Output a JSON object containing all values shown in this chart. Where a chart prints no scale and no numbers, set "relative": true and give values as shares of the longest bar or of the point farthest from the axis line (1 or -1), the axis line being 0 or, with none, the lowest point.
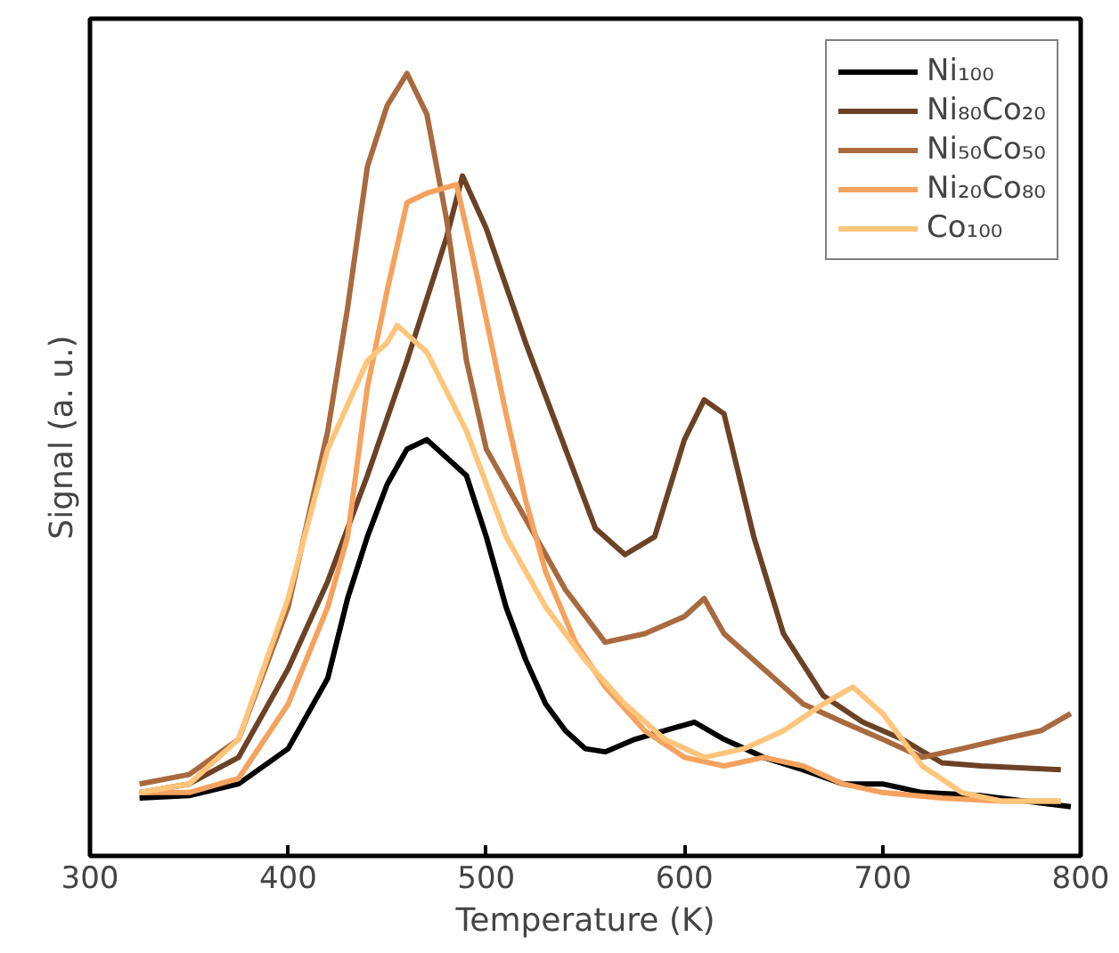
{
  "chart_data": {
    "type": "line",
    "xlabel": "Temperature (K)",
    "ylabel": "Signal (a. u.)",
    "relative": true,
    "xlim": [
      300,
      800
    ],
    "xticks": [
      300,
      400,
      500,
      600,
      700,
      800
    ],
    "tick_labels": "x",
    "grid": false,
    "legend": "top right",
    "line_style": "solid",
    "marker": "none",
    "series": [
      {
        "name": "Ni₁₀₀",
        "color": "#000000",
        "x": [
          325,
          350,
          375,
          400,
          420,
          430,
          440,
          450,
          460,
          470,
          480,
          490,
          500,
          510,
          520,
          530,
          540,
          550,
          560,
          575,
          590,
          605,
          620,
          640,
          660,
          680,
          700,
          720,
          750,
          795
        ],
        "values": [
          0.074,
          0.077,
          0.092,
          0.137,
          0.227,
          0.329,
          0.408,
          0.475,
          0.52,
          0.532,
          0.509,
          0.486,
          0.408,
          0.318,
          0.25,
          0.194,
          0.16,
          0.137,
          0.133,
          0.149,
          0.16,
          0.171,
          0.149,
          0.126,
          0.11,
          0.092,
          0.092,
          0.081,
          0.077,
          0.063
        ]
      },
      {
        "name": "Ni₈₀Co₂₀",
        "color": "#6b4226",
        "x": [
          325,
          350,
          375,
          400,
          420,
          440,
          460,
          480,
          488,
          500,
          520,
          540,
          555,
          570,
          585,
          600,
          610,
          620,
          635,
          650,
          670,
          690,
          710,
          730,
          750,
          790
        ],
        "values": [
          0.081,
          0.092,
          0.126,
          0.239,
          0.351,
          0.486,
          0.633,
          0.791,
          0.869,
          0.802,
          0.655,
          0.52,
          0.419,
          0.385,
          0.408,
          0.532,
          0.583,
          0.565,
          0.408,
          0.284,
          0.205,
          0.171,
          0.149,
          0.119,
          0.115,
          0.11
        ]
      },
      {
        "name": "Ni₅₀Co₅₀",
        "color": "#a86a3e",
        "x": [
          325,
          350,
          375,
          400,
          420,
          430,
          440,
          450,
          460,
          470,
          480,
          490,
          500,
          520,
          540,
          560,
          580,
          600,
          610,
          620,
          640,
          660,
          680,
          700,
          720,
          740,
          760,
          780,
          795
        ],
        "values": [
          0.092,
          0.104,
          0.149,
          0.318,
          0.543,
          0.7,
          0.881,
          0.959,
          1.0,
          0.948,
          0.813,
          0.633,
          0.52,
          0.43,
          0.34,
          0.273,
          0.284,
          0.306,
          0.329,
          0.284,
          0.239,
          0.194,
          0.171,
          0.149,
          0.126,
          0.137,
          0.149,
          0.16,
          0.182
        ]
      },
      {
        "name": "Ni₂₀Co₈₀",
        "color": "#f5a25e",
        "x": [
          325,
          350,
          375,
          400,
          420,
          430,
          440,
          450,
          460,
          470,
          485,
          495,
          510,
          520,
          530,
          545,
          560,
          580,
          600,
          620,
          640,
          660,
          680,
          700,
          730,
          760,
          790
        ],
        "values": [
          0.081,
          0.081,
          0.099,
          0.194,
          0.318,
          0.408,
          0.599,
          0.723,
          0.835,
          0.847,
          0.858,
          0.746,
          0.565,
          0.453,
          0.363,
          0.273,
          0.216,
          0.16,
          0.126,
          0.115,
          0.126,
          0.115,
          0.092,
          0.081,
          0.074,
          0.07,
          0.07
        ]
      },
      {
        "name": "Co₁₀₀",
        "color": "#ffc57a",
        "x": [
          325,
          350,
          375,
          400,
          420,
          440,
          450,
          455,
          470,
          490,
          510,
          530,
          550,
          570,
          590,
          610,
          630,
          650,
          670,
          685,
          700,
          720,
          740,
          760,
          790
        ],
        "values": [
          0.081,
          0.092,
          0.149,
          0.329,
          0.52,
          0.633,
          0.656,
          0.678,
          0.644,
          0.543,
          0.408,
          0.318,
          0.25,
          0.194,
          0.149,
          0.126,
          0.137,
          0.16,
          0.194,
          0.216,
          0.182,
          0.115,
          0.081,
          0.07,
          0.07
        ]
      }
    ]
  }
}
